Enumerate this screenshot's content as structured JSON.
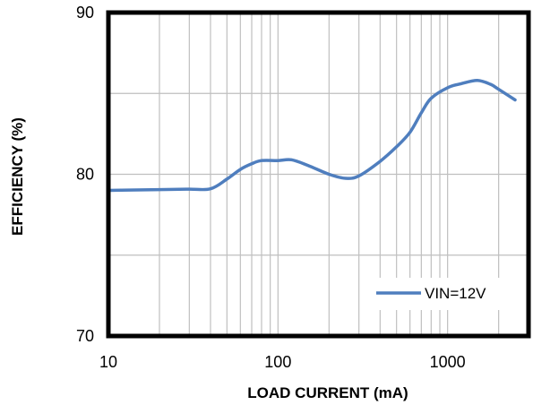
{
  "chart_data": {
    "type": "line",
    "xlabel": "LOAD CURRENT  (mA)",
    "ylabel": "EFFICIENCY  (%)",
    "x_scale": "log",
    "xlim": [
      10,
      3000
    ],
    "ylim": [
      70,
      90
    ],
    "x_ticks": [
      {
        "value": 10,
        "label": "10"
      },
      {
        "value": 100,
        "label": "100"
      },
      {
        "value": 1000,
        "label": "1000"
      }
    ],
    "y_ticks": [
      {
        "value": 70,
        "label": "70"
      },
      {
        "value": 80,
        "label": "80"
      },
      {
        "value": 90,
        "label": "90"
      }
    ],
    "grid": true,
    "legend_position": "bottom-right",
    "series": [
      {
        "name": "VIN=12V",
        "color": "#4F7EBE",
        "points": [
          [
            10,
            79.0
          ],
          [
            20,
            79.05
          ],
          [
            30,
            79.08
          ],
          [
            40,
            79.1
          ],
          [
            50,
            79.7
          ],
          [
            60,
            80.3
          ],
          [
            70,
            80.65
          ],
          [
            80,
            80.85
          ],
          [
            100,
            80.85
          ],
          [
            120,
            80.9
          ],
          [
            150,
            80.55
          ],
          [
            200,
            80.0
          ],
          [
            250,
            79.75
          ],
          [
            300,
            79.9
          ],
          [
            400,
            80.8
          ],
          [
            500,
            81.7
          ],
          [
            600,
            82.6
          ],
          [
            700,
            83.8
          ],
          [
            800,
            84.7
          ],
          [
            1000,
            85.35
          ],
          [
            1200,
            85.6
          ],
          [
            1500,
            85.8
          ],
          [
            1800,
            85.55
          ],
          [
            2000,
            85.25
          ],
          [
            2500,
            84.6
          ]
        ]
      }
    ]
  }
}
